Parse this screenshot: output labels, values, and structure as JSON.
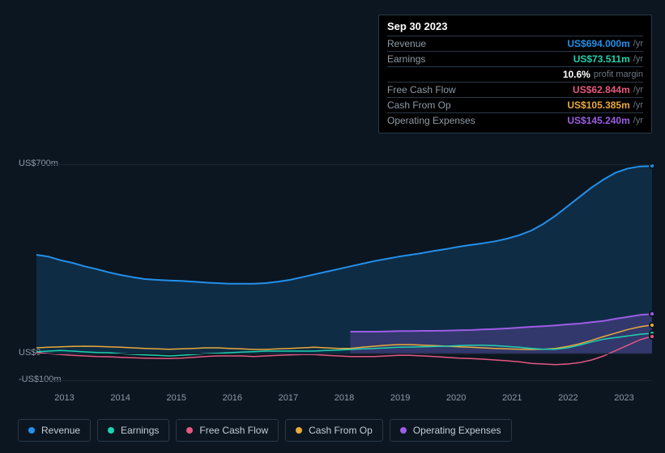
{
  "tooltip": {
    "date": "Sep 30 2023",
    "rows": [
      {
        "label": "Revenue",
        "amount": "US$694.000m",
        "unit": "/yr",
        "color": "#2390ea"
      },
      {
        "label": "Earnings",
        "amount": "US$73.511m",
        "unit": "/yr",
        "color": "#1dd3b0"
      },
      {
        "label": "",
        "amount": "10.6%",
        "unit": "profit margin",
        "color": "#ffffff"
      },
      {
        "label": "Free Cash Flow",
        "amount": "US$62.844m",
        "unit": "/yr",
        "color": "#e6587f"
      },
      {
        "label": "Cash From Op",
        "amount": "US$105.385m",
        "unit": "/yr",
        "color": "#e9aa3b"
      },
      {
        "label": "Operating Expenses",
        "amount": "US$145.240m",
        "unit": "/yr",
        "color": "#9d5de5"
      }
    ]
  },
  "chart": {
    "type": "line",
    "background": "#0b1621",
    "plot_background": "linear-gradient(180deg, #0e1d2c 0%, #0b1621 100%)",
    "ylim": [
      -100,
      800
    ],
    "y_ticks": [
      {
        "value": 700,
        "label": "US$700m"
      },
      {
        "value": 0,
        "label": "US$0"
      },
      {
        "value": -100,
        "label": "-US$100m"
      }
    ],
    "x_years": [
      "2013",
      "2014",
      "2015",
      "2016",
      "2017",
      "2018",
      "2019",
      "2020",
      "2021",
      "2022",
      "2023"
    ],
    "series": {
      "revenue": {
        "color": "#2390ea",
        "fill": "rgba(35,144,234,0.18)",
        "width": 2,
        "values": [
          365,
          358,
          345,
          335,
          322,
          312,
          300,
          290,
          282,
          275,
          272,
          270,
          268,
          265,
          262,
          260,
          258,
          258,
          258,
          260,
          265,
          272,
          282,
          292,
          302,
          312,
          322,
          332,
          342,
          350,
          358,
          365,
          372,
          380,
          387,
          395,
          402,
          408,
          415,
          425,
          438,
          455,
          480,
          510,
          545,
          580,
          615,
          645,
          670,
          685,
          693,
          694
        ]
      },
      "operating_expenses": {
        "color": "#9d5de5",
        "fill": "rgba(157,93,229,0.25)",
        "width": 2,
        "start_index": 26,
        "values": [
          80,
          80,
          80,
          81,
          82,
          82,
          83,
          83,
          84,
          85,
          86,
          88,
          90,
          92,
          95,
          98,
          100,
          103,
          107,
          110,
          115,
          120,
          128,
          135,
          142,
          145
        ]
      },
      "earnings": {
        "color": "#1dd3b0",
        "width": 1.5,
        "values": [
          5,
          8,
          10,
          8,
          5,
          3,
          2,
          -2,
          -4,
          -6,
          -8,
          -10,
          -8,
          -5,
          -2,
          0,
          2,
          4,
          6,
          8,
          8,
          8,
          8,
          8,
          10,
          12,
          14,
          16,
          18,
          20,
          22,
          23,
          24,
          25,
          26,
          28,
          30,
          30,
          28,
          25,
          22,
          18,
          15,
          15,
          20,
          30,
          42,
          52,
          58,
          64,
          70,
          74
        ]
      },
      "free_cash_flow": {
        "color": "#e6587f",
        "width": 1.5,
        "values": [
          2,
          -2,
          -5,
          -8,
          -10,
          -12,
          -13,
          -15,
          -17,
          -18,
          -19,
          -20,
          -18,
          -15,
          -12,
          -10,
          -10,
          -10,
          -12,
          -10,
          -8,
          -6,
          -5,
          -5,
          -8,
          -10,
          -12,
          -12,
          -12,
          -10,
          -8,
          -8,
          -10,
          -12,
          -15,
          -18,
          -20,
          -22,
          -25,
          -28,
          -32,
          -38,
          -40,
          -42,
          -40,
          -35,
          -25,
          -10,
          10,
          30,
          50,
          63
        ]
      },
      "cash_from_op": {
        "color": "#e9aa3b",
        "width": 1.5,
        "values": [
          20,
          22,
          24,
          25,
          26,
          25,
          24,
          22,
          20,
          18,
          16,
          15,
          16,
          18,
          20,
          20,
          18,
          16,
          14,
          14,
          16,
          18,
          20,
          22,
          20,
          18,
          18,
          22,
          26,
          30,
          32,
          32,
          30,
          28,
          26,
          24,
          22,
          20,
          18,
          16,
          15,
          14,
          15,
          18,
          25,
          35,
          48,
          62,
          75,
          88,
          98,
          105
        ]
      }
    },
    "legend": [
      {
        "label": "Revenue",
        "color": "#2390ea"
      },
      {
        "label": "Earnings",
        "color": "#1dd3b0"
      },
      {
        "label": "Free Cash Flow",
        "color": "#e6587f"
      },
      {
        "label": "Cash From Op",
        "color": "#e9aa3b"
      },
      {
        "label": "Operating Expenses",
        "color": "#9d5de5"
      }
    ],
    "end_markers": [
      {
        "color": "#2390ea",
        "value": 694
      },
      {
        "color": "#9d5de5",
        "value": 145
      },
      {
        "color": "#e9aa3b",
        "value": 105
      },
      {
        "color": "#1dd3b0",
        "value": 74
      },
      {
        "color": "#e6587f",
        "value": 63
      }
    ]
  }
}
